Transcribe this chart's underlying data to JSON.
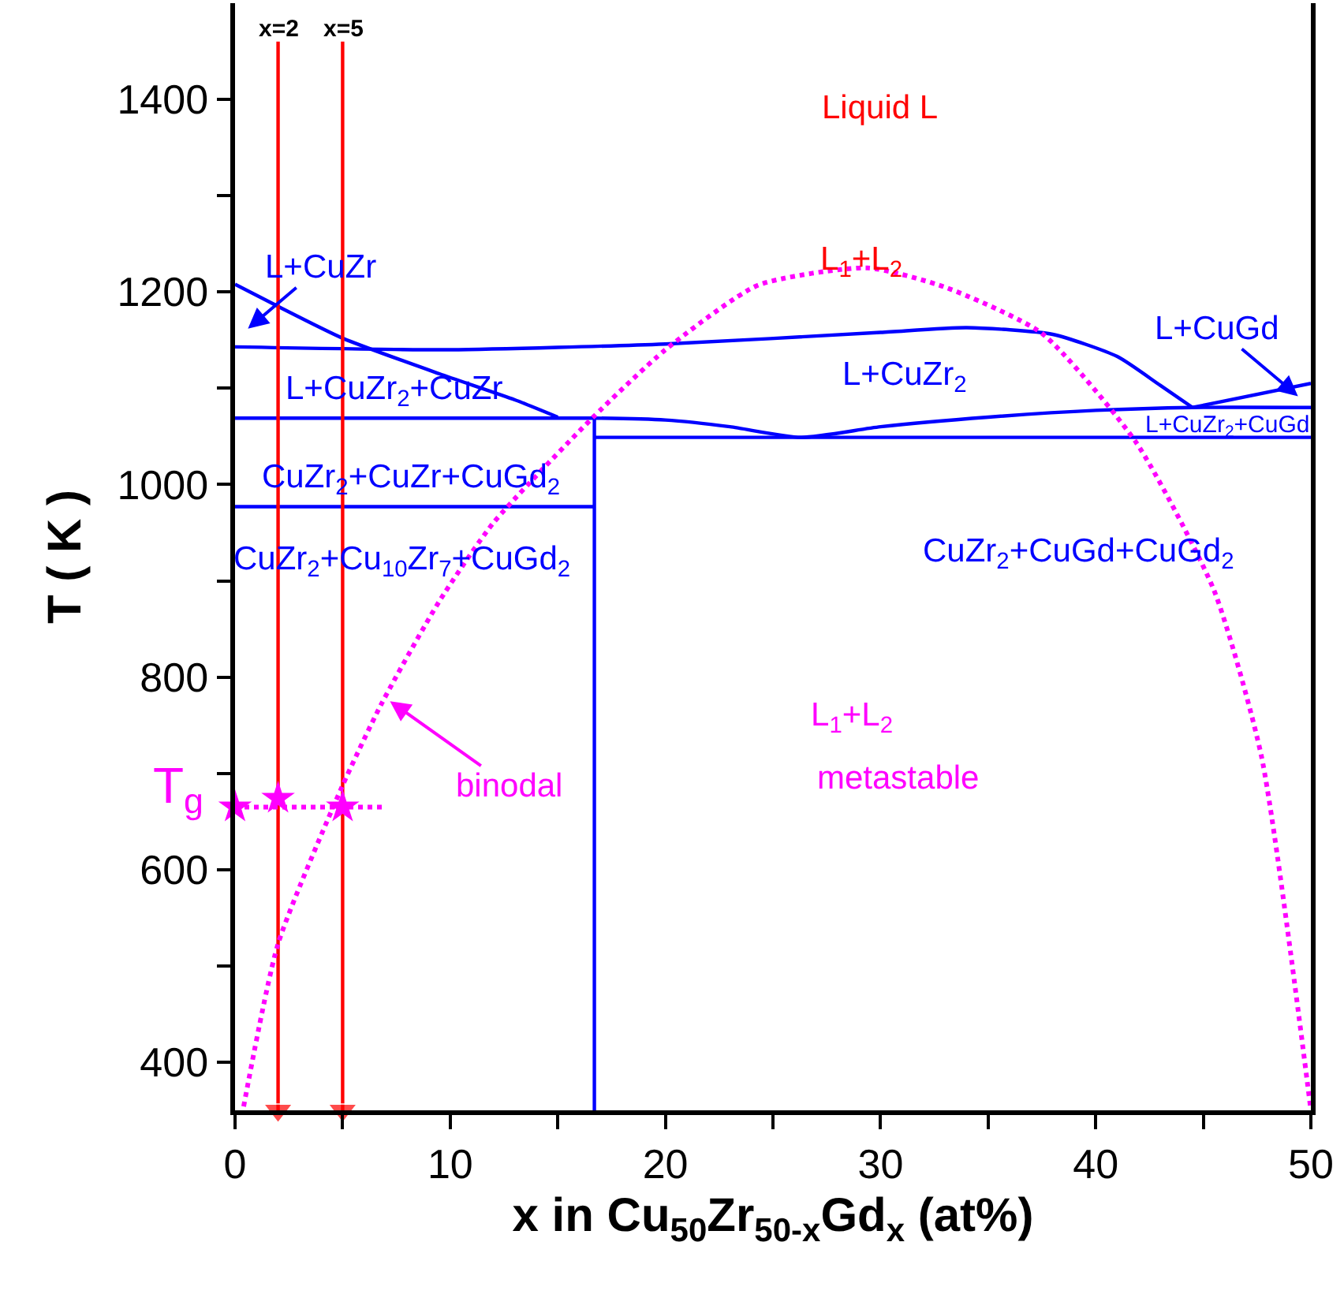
{
  "chart_data": {
    "type": "line",
    "xlabel": "x in Cu$_{50}$Zr$_{50-x}$Gd$_{x}$ (at%)",
    "ylabel": "T ( K )",
    "xlim": [
      0,
      50
    ],
    "ylim": [
      350,
      1500
    ],
    "xticks": [
      0,
      {
        "value": 5,
        "label": null
      },
      10,
      {
        "value": 15,
        "label": null
      },
      20,
      {
        "value": 25,
        "label": null
      },
      30,
      {
        "value": 35,
        "label": null
      },
      40,
      {
        "value": 45,
        "label": null
      },
      50
    ],
    "yticks": [
      400,
      {
        "value": 500,
        "label": null
      },
      600,
      {
        "value": 700,
        "label": null
      },
      800,
      {
        "value": 900,
        "label": null
      },
      1000,
      {
        "value": 1100,
        "label": null
      },
      1200,
      {
        "value": 1300,
        "label": null
      },
      1400
    ],
    "series": [
      {
        "color": "#0000ff",
        "line_style": "solid",
        "marker": "none",
        "x": [
          0,
          2,
          5,
          9.5,
          13,
          15
        ],
        "values": [
          1208,
          1185,
          1152,
          1115,
          1088,
          1070
        ]
      },
      {
        "color": "#0000ff",
        "line_style": "solid",
        "marker": "none",
        "x": [
          0,
          10,
          20,
          30,
          34,
          38,
          41,
          43,
          44.5
        ],
        "values": [
          1143,
          1140,
          1146,
          1158,
          1163,
          1156,
          1133,
          1103,
          1080
        ]
      },
      {
        "color": "#0000ff",
        "line_style": "solid",
        "marker": "none",
        "x": [
          0,
          16.7,
          20,
          23,
          26.3,
          30,
          35,
          40,
          44.5,
          50
        ],
        "values": [
          1069,
          1069,
          1067,
          1060,
          1049,
          1060,
          1070,
          1077,
          1080,
          1080
        ]
      },
      {
        "color": "#0000ff",
        "line_style": "solid",
        "marker": "none",
        "x": [
          16.7,
          50
        ],
        "values": [
          1049,
          1049
        ]
      },
      {
        "color": "#0000ff",
        "line_style": "solid",
        "marker": "none",
        "x": [
          44.5,
          50
        ],
        "values": [
          1080,
          1105
        ]
      },
      {
        "color": "#0000ff",
        "line_style": "solid",
        "marker": "none",
        "x": [
          0,
          16.7
        ],
        "values": [
          977,
          977
        ]
      },
      {
        "color": "#0000ff",
        "line_style": "solid",
        "marker": "none",
        "x": [
          16.7,
          16.7
        ],
        "values": [
          350,
          1069
        ]
      },
      {
        "color": "#ff0000",
        "line_style": "solid",
        "marker": "triangle",
        "x": [
          2,
          2
        ],
        "values": [
          1460,
          350
        ]
      },
      {
        "color": "#ff0000",
        "line_style": "solid",
        "marker": "triangle",
        "x": [
          5,
          5
        ],
        "values": [
          1460,
          350
        ]
      },
      {
        "color": "#ff00ff",
        "line_style": "dotted",
        "marker": "none",
        "x": [
          0.4,
          2,
          4.95,
          6.8,
          9.5,
          12,
          16.6,
          20,
          24.3,
          29.4,
          33,
          37.5,
          41.9,
          45.5,
          47.7,
          50
        ],
        "values": [
          354,
          523,
          685,
          772,
          879,
          960,
          1069,
          1140,
          1207,
          1225,
          1205,
          1157,
          1043,
          890,
          718,
          350
        ]
      },
      {
        "color": "#ff00ff",
        "line_style": "dotted",
        "marker": "none",
        "x": [
          0,
          7
        ],
        "values": [
          665,
          665
        ]
      },
      {
        "type": "scatter",
        "color": "#ff00ff",
        "marker": "star",
        "x": [
          0,
          2,
          5
        ],
        "values": [
          665,
          674,
          665
        ]
      }
    ],
    "annotations": [
      "x=2",
      "x=5",
      "Liquid L",
      "L$_{1}$+L$_{2}$",
      "L+CuZr",
      "L+CuZr$_{2}$+CuZr",
      "CuZr$_{2}$+CuZr+CuGd$_{2}$",
      "CuZr$_{2}$+Cu$_{10}$Zr$_{7}$+CuGd$_{2}$",
      "L+CuZr$_{2}$",
      "L+CuGd",
      "L+CuZr$_{2}$+CuGd",
      "CuZr$_{2}$+CuGd+CuGd$_{2}$",
      "L$_{1}$+L$_{2}$",
      "metastable",
      {
        "text": "binodal",
        "x": 7.2,
        "y": 775
      },
      "T$_{g}$"
    ]
  }
}
